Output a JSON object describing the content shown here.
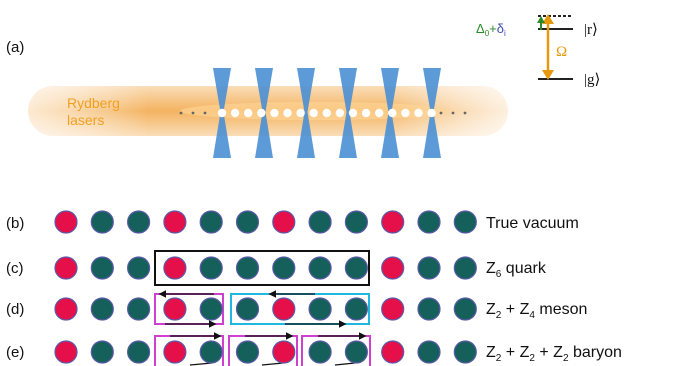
{
  "panel_labels": {
    "a": "(a)",
    "b": "(b)",
    "c": "(c)",
    "d": "(d)",
    "e": "(e)"
  },
  "laser_label_lines": [
    "Rydberg",
    "lasers"
  ],
  "level_diagram": {
    "detuning_base": "Δ",
    "detuning_base_sub": "0",
    "detuning_plus": "+",
    "detuning_shift": "δ",
    "detuning_shift_sub": "i",
    "rabi": "Ω",
    "ket_r": "|r⟩",
    "ket_g": "|g⟩"
  },
  "rows": [
    {
      "id": "b",
      "sites": [
        "r",
        "g",
        "g",
        "r",
        "g",
        "g",
        "r",
        "g",
        "g",
        "r",
        "g",
        "g"
      ],
      "label": "True vacuum"
    },
    {
      "id": "c",
      "sites": [
        "r",
        "g",
        "g",
        "r",
        "g",
        "g",
        "g",
        "g",
        "g",
        "r",
        "g",
        "g"
      ],
      "label_Z": "Z",
      "label_sub": "6",
      "label_rest": " quark"
    },
    {
      "id": "d",
      "sites": [
        "r",
        "g",
        "g",
        "r",
        "g",
        "g",
        "r",
        "g",
        "g",
        "r",
        "g",
        "g"
      ],
      "label_Z": "Z",
      "label_sub": "2",
      "label_plus": " + Z",
      "label_sub2": "4",
      "label_rest": "  meson"
    },
    {
      "id": "e",
      "sites": [
        "r",
        "g",
        "g",
        "r",
        "g",
        "g",
        "r",
        "g",
        "g",
        "r",
        "g",
        "g"
      ],
      "label_Z": "Z",
      "label_sub": "2",
      "label_plus": " + Z",
      "label_sub2": "2",
      "label_plus2": " + Z",
      "label_sub3": "2",
      "label_rest": " baryon"
    }
  ],
  "colors": {
    "red_site": "#e5104a",
    "green_site": "#15605a",
    "site_edge": "#5a5aa8",
    "tweezer": "#4a8fd4",
    "laser_glow": "#f0a040",
    "laser_text": "#f0a020",
    "quark_box": "#111111",
    "meson_box_small": "#d040d0",
    "meson_box_large": "#20b8e0",
    "baryon_box": "#d040d0",
    "rabi_arrow": "#e8980c",
    "detuning_green": "#2a8a2a",
    "detuning_blue": "#3a4ab0"
  }
}
